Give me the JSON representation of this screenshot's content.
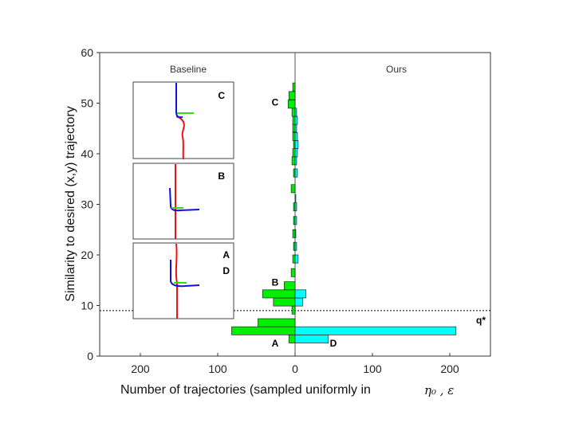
{
  "chart_data": {
    "type": "bar",
    "orientation": "horizontal-diverging",
    "ylabel": "Similarity to desired (x,y) trajectory",
    "xlabel": "Number of trajectories (sampled uniformly in",
    "xlabel_math": "η₀ , ε",
    "ylim": [
      0,
      60
    ],
    "xlim_left": [
      250,
      0
    ],
    "xlim_right": [
      0,
      250
    ],
    "x_ticks": [
      "200",
      "100",
      "0",
      "100",
      "200"
    ],
    "y_ticks": [
      "0",
      "10",
      "20",
      "30",
      "40",
      "50",
      "60"
    ],
    "left_panel_title": "Baseline",
    "right_panel_title": "Ours",
    "threshold": {
      "label": "q*",
      "y": 9
    },
    "bin_width": 1.6,
    "series": [
      {
        "name": "Baseline",
        "color": "#00ee00",
        "bins": [
          {
            "y": 3.4,
            "value": 8
          },
          {
            "y": 5.0,
            "value": 82
          },
          {
            "y": 6.6,
            "value": 48
          },
          {
            "y": 9.1,
            "value": 4
          },
          {
            "y": 10.7,
            "value": 28
          },
          {
            "y": 12.3,
            "value": 42
          },
          {
            "y": 13.9,
            "value": 14
          },
          {
            "y": 16.5,
            "value": 5
          },
          {
            "y": 19.2,
            "value": 3
          },
          {
            "y": 21.7,
            "value": 2
          },
          {
            "y": 24.2,
            "value": 3
          },
          {
            "y": 26.8,
            "value": 2
          },
          {
            "y": 29.5,
            "value": 2
          },
          {
            "y": 33.1,
            "value": 5
          },
          {
            "y": 36.2,
            "value": 2
          },
          {
            "y": 38.6,
            "value": 4
          },
          {
            "y": 40.2,
            "value": 3
          },
          {
            "y": 41.8,
            "value": 2
          },
          {
            "y": 43.4,
            "value": 3
          },
          {
            "y": 45.1,
            "value": 3
          },
          {
            "y": 46.6,
            "value": 3
          },
          {
            "y": 48.2,
            "value": 4
          },
          {
            "y": 49.8,
            "value": 9
          },
          {
            "y": 51.5,
            "value": 8
          },
          {
            "y": 53.2,
            "value": 3
          }
        ]
      },
      {
        "name": "Ours",
        "color": "#00ffff",
        "bins": [
          {
            "y": 3.4,
            "value": 43
          },
          {
            "y": 5.0,
            "value": 208
          },
          {
            "y": 10.7,
            "value": 10
          },
          {
            "y": 12.3,
            "value": 14
          },
          {
            "y": 19.2,
            "value": 4
          },
          {
            "y": 21.7,
            "value": 2
          },
          {
            "y": 24.2,
            "value": 1
          },
          {
            "y": 26.8,
            "value": 2
          },
          {
            "y": 29.5,
            "value": 2
          },
          {
            "y": 31.1,
            "value": 1
          },
          {
            "y": 36.2,
            "value": 3
          },
          {
            "y": 38.6,
            "value": 2
          },
          {
            "y": 40.2,
            "value": 3
          },
          {
            "y": 41.8,
            "value": 4
          },
          {
            "y": 43.4,
            "value": 3
          },
          {
            "y": 45.1,
            "value": 2
          },
          {
            "y": 46.6,
            "value": 3
          },
          {
            "y": 48.2,
            "value": 2
          }
        ]
      }
    ],
    "bar_annotations": [
      {
        "label": "A",
        "y": 2.7,
        "side": "left"
      },
      {
        "label": "B",
        "y": 14.7,
        "side": "left"
      },
      {
        "label": "C",
        "y": 50.3,
        "side": "left"
      },
      {
        "label": "D",
        "y": 2.7,
        "side": "right"
      }
    ],
    "insets": [
      {
        "label": "C",
        "secondary_label": ""
      },
      {
        "label": "B",
        "secondary_label": ""
      },
      {
        "label": "A",
        "secondary_label": "D"
      }
    ]
  }
}
